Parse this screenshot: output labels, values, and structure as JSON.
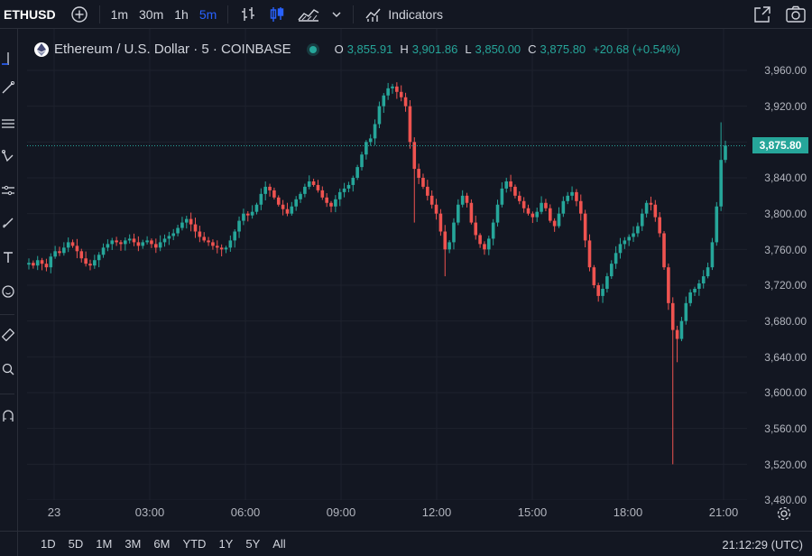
{
  "topbar": {
    "symbol": "ETHUSD",
    "intervals": [
      "1m",
      "30m",
      "1h",
      "5m"
    ],
    "active_interval": "5m",
    "indicators_label": "Indicators"
  },
  "legend": {
    "title": "Ethereum / U.S. Dollar · 5 · COINBASE",
    "ohlc": [
      {
        "k": "O",
        "v": "3,855.91"
      },
      {
        "k": "H",
        "v": "3,901.86"
      },
      {
        "k": "L",
        "v": "3,850.00"
      },
      {
        "k": "C",
        "v": "3,875.80"
      },
      {
        "k": "",
        "v": "+20.68 (+0.54%)"
      }
    ]
  },
  "price_tag": "3,875.80",
  "price_labels": [
    "3,960.00",
    "3,920.00",
    "3,880.00",
    "3,840.00",
    "3,800.00",
    "3,760.00",
    "3,720.00",
    "3,680.00",
    "3,640.00",
    "3,600.00",
    "3,560.00",
    "3,520.00",
    "3,480.00"
  ],
  "time_labels": [
    "23",
    "03:00",
    "06:00",
    "09:00",
    "12:00",
    "15:00",
    "18:00",
    "21:00"
  ],
  "ranges": [
    "1D",
    "5D",
    "1M",
    "3M",
    "6M",
    "YTD",
    "1Y",
    "5Y",
    "All"
  ],
  "clock": "21:12:29 (UTC)",
  "colors": {
    "up": "#26a69a",
    "down": "#ef5350",
    "bg": "#131722"
  },
  "chart_data": {
    "type": "candlestick",
    "y_range": [
      3480,
      3960
    ],
    "last_price": 3875.8,
    "series_close": [
      3745,
      3742,
      3748,
      3744,
      3740,
      3752,
      3758,
      3756,
      3762,
      3768,
      3764,
      3758,
      3750,
      3744,
      3742,
      3748,
      3754,
      3762,
      3766,
      3770,
      3768,
      3766,
      3770,
      3772,
      3768,
      3764,
      3768,
      3770,
      3766,
      3762,
      3768,
      3772,
      3775,
      3778,
      3784,
      3790,
      3794,
      3788,
      3780,
      3774,
      3770,
      3768,
      3764,
      3762,
      3760,
      3762,
      3770,
      3780,
      3792,
      3800,
      3798,
      3802,
      3810,
      3822,
      3830,
      3826,
      3818,
      3810,
      3805,
      3800,
      3808,
      3816,
      3822,
      3830,
      3836,
      3832,
      3826,
      3818,
      3812,
      3808,
      3816,
      3824,
      3828,
      3832,
      3840,
      3852,
      3866,
      3880,
      3884,
      3900,
      3920,
      3932,
      3940,
      3942,
      3936,
      3930,
      3920,
      3880,
      3850,
      3840,
      3830,
      3820,
      3810,
      3800,
      3780,
      3760,
      3768,
      3790,
      3810,
      3820,
      3812,
      3790,
      3776,
      3766,
      3760,
      3772,
      3790,
      3810,
      3828,
      3836,
      3830,
      3820,
      3814,
      3806,
      3800,
      3796,
      3802,
      3812,
      3806,
      3792,
      3786,
      3800,
      3814,
      3820,
      3824,
      3814,
      3800,
      3770,
      3740,
      3720,
      3708,
      3716,
      3730,
      3744,
      3756,
      3766,
      3770,
      3774,
      3778,
      3786,
      3800,
      3812,
      3810,
      3796,
      3778,
      3740,
      3700,
      3670,
      3660,
      3680,
      3700,
      3712,
      3716,
      3722,
      3730,
      3740,
      3768,
      3808,
      3860,
      3876
    ]
  }
}
